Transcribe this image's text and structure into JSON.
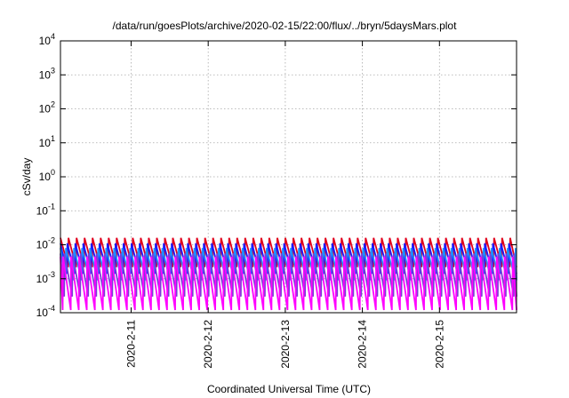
{
  "chart_data": {
    "type": "line",
    "title": "/data/run/goesPlots/archive/2020-02-15/22:00/flux/../bryn/5daysMars.plot",
    "xlabel": "Coordinated Universal Time (UTC)",
    "ylabel": "cSv/day",
    "y_scale": "log",
    "ylim": [
      0.0001,
      10000
    ],
    "y_ticks": [
      {
        "value": 0.0001,
        "base": "10",
        "exp": "-4"
      },
      {
        "value": 0.001,
        "base": "10",
        "exp": "-3"
      },
      {
        "value": 0.01,
        "base": "10",
        "exp": "-2"
      },
      {
        "value": 0.1,
        "base": "10",
        "exp": "-1"
      },
      {
        "value": 1,
        "base": "10",
        "exp": "0"
      },
      {
        "value": 10,
        "base": "10",
        "exp": "1"
      },
      {
        "value": 100,
        "base": "10",
        "exp": "2"
      },
      {
        "value": 1000,
        "base": "10",
        "exp": "3"
      },
      {
        "value": 10000,
        "base": "10",
        "exp": "4"
      }
    ],
    "xlim": [
      "2020-02-10T02:00",
      "2020-02-16T00:00"
    ],
    "x_ticks": [
      "2020-2-11",
      "2020-2-12",
      "2020-2-13",
      "2020-2-14",
      "2020-2-15"
    ],
    "x_tick_values": [
      "2020-02-11T00:00",
      "2020-02-12T00:00",
      "2020-02-13T00:00",
      "2020-02-14T00:00",
      "2020-02-15T00:00"
    ],
    "grid": true,
    "legend": "none",
    "sawtooth_period_hours": 2.5,
    "series": [
      {
        "color": "#e0001c",
        "peak": 0.016,
        "trough": 0.0022,
        "phase": 0.0
      },
      {
        "color": "#1a1aff",
        "peak": 0.011,
        "trough": 0.0014,
        "phase": 0.15
      },
      {
        "color": "#1e90ff",
        "peak": 0.008,
        "trough": 0.0009,
        "phase": 0.32
      },
      {
        "color": "#7a3fd6",
        "peak": 0.0055,
        "trough": 0.0003,
        "phase": 0.5
      },
      {
        "color": "#ff00ff",
        "peak": 0.0045,
        "trough": 0.00012,
        "phase": 0.68
      }
    ]
  }
}
